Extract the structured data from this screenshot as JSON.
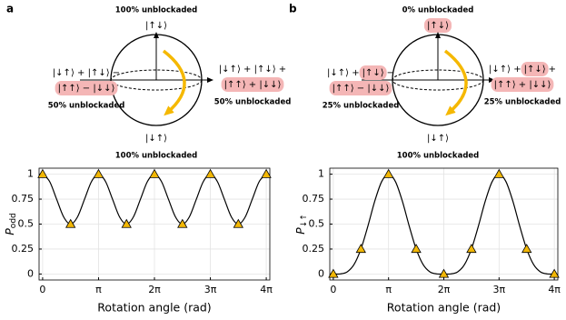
{
  "diagrams": [
    {
      "label": "a",
      "top_text": "100% unblockaded",
      "top_state": [
        {
          "text": "|↑↓⟩",
          "highlight": false
        }
      ],
      "left_lines": [
        [
          {
            "text": "|↓↑⟩ + |↑↓⟩ −",
            "highlight": false
          }
        ],
        [
          {
            "text": "|↑↑⟩ − |↓↓⟩",
            "highlight": true
          }
        ]
      ],
      "left_note": "50% unblockaded",
      "right_lines": [
        [
          {
            "text": "|↓↑⟩ + |↑↓⟩ +",
            "highlight": false
          }
        ],
        [
          {
            "text": "|↑↑⟩ + |↓↓⟩",
            "highlight": true
          }
        ]
      ],
      "right_note": "50% unblockaded",
      "bottom_state": "|↓↑⟩",
      "bottom_text": "100% unblockaded"
    },
    {
      "label": "b",
      "top_text": "0% unblockaded",
      "top_state": [
        {
          "text": "|↑↓⟩",
          "highlight": true
        }
      ],
      "left_lines": [
        [
          {
            "text": "|↓↑⟩ +",
            "highlight": false
          },
          {
            "text": "|↑↓⟩",
            "highlight": true
          },
          {
            "text": "−",
            "highlight": false
          }
        ],
        [
          {
            "text": "|↑↑⟩ − |↓↓⟩",
            "highlight": true
          }
        ]
      ],
      "left_note": "25% unblockaded",
      "right_lines": [
        [
          {
            "text": "|↓↑⟩ +",
            "highlight": false
          },
          {
            "text": "|↑↓⟩",
            "highlight": true
          },
          {
            "text": "+",
            "highlight": false
          }
        ],
        [
          {
            "text": "|↑↑⟩ + |↓↓⟩",
            "highlight": true
          }
        ]
      ],
      "right_note": "25% unblockaded",
      "bottom_state": "|↓↑⟩",
      "bottom_text": "100% unblockaded"
    }
  ],
  "chart_data": [
    {
      "type": "line",
      "xlabel": "Rotation angle (rad)",
      "ylabel": {
        "main": "P",
        "sub": "odd"
      },
      "xlim": [
        -0.2,
        12.7664
      ],
      "ylim": [
        -0.06,
        1.06
      ],
      "grid": true,
      "xticks": [
        0,
        {
          "value": 3.1416,
          "label": "π"
        },
        {
          "value": 6.2832,
          "label": "2π"
        },
        {
          "value": 9.4248,
          "label": "3π"
        },
        {
          "value": 12.5664,
          "label": "4π"
        }
      ],
      "yticks": [
        0,
        0.25,
        0.5,
        0.75,
        1
      ],
      "series": [
        {
          "style": "line",
          "color": "#000000",
          "x": [
            0,
            0.3927,
            0.7854,
            1.1781,
            1.5708,
            1.9635,
            2.3562,
            2.7489,
            3.1416,
            3.5343,
            3.927,
            4.3197,
            4.7124,
            5.1051,
            5.4978,
            5.8905,
            6.2832,
            6.6759,
            7.0686,
            7.4613,
            7.854,
            8.2467,
            8.6394,
            9.0321,
            9.4248,
            9.8175,
            10.2102,
            10.6029,
            10.9956,
            11.3883,
            11.781,
            12.1737,
            12.5664
          ],
          "values": [
            1,
            0.927,
            0.75,
            0.573,
            0.5,
            0.573,
            0.75,
            0.927,
            1,
            0.927,
            0.75,
            0.573,
            0.5,
            0.573,
            0.75,
            0.927,
            1,
            0.927,
            0.75,
            0.573,
            0.5,
            0.573,
            0.75,
            0.927,
            1,
            0.927,
            0.75,
            0.573,
            0.5,
            0.573,
            0.75,
            0.927,
            1
          ]
        },
        {
          "style": "triangle",
          "color": "#f2b705",
          "x": [
            0,
            1.5708,
            3.1416,
            4.7124,
            6.2832,
            7.854,
            9.4248,
            10.9956,
            12.5664
          ],
          "values": [
            1,
            0.5,
            1,
            0.5,
            1,
            0.5,
            1,
            0.5,
            1
          ]
        }
      ]
    },
    {
      "type": "line",
      "xlabel": "Rotation angle (rad)",
      "ylabel": {
        "main": "P",
        "sub": "↓↑"
      },
      "xlim": [
        -0.2,
        12.7664
      ],
      "ylim": [
        -0.06,
        1.06
      ],
      "grid": true,
      "xticks": [
        0,
        {
          "value": 3.1416,
          "label": "π"
        },
        {
          "value": 6.2832,
          "label": "2π"
        },
        {
          "value": 9.4248,
          "label": "3π"
        },
        {
          "value": 12.5664,
          "label": "4π"
        }
      ],
      "yticks": [
        0,
        0.25,
        0.5,
        0.75,
        1
      ],
      "series": [
        {
          "style": "line",
          "color": "#000000",
          "x": [
            0,
            0.3927,
            0.7854,
            1.1781,
            1.5708,
            1.9635,
            2.3562,
            2.7489,
            3.1416,
            3.5343,
            3.927,
            4.3197,
            4.7124,
            5.1051,
            5.4978,
            5.8905,
            6.2832,
            6.6759,
            7.0686,
            7.4613,
            7.854,
            8.2467,
            8.6394,
            9.0321,
            9.4248,
            9.8175,
            10.2102,
            10.6029,
            10.9956,
            11.3883,
            11.781,
            12.1737,
            12.5664
          ],
          "values": [
            0,
            0.001,
            0.021,
            0.095,
            0.25,
            0.478,
            0.729,
            0.925,
            1,
            0.925,
            0.729,
            0.478,
            0.25,
            0.095,
            0.021,
            0.001,
            0,
            0.001,
            0.021,
            0.095,
            0.25,
            0.478,
            0.729,
            0.925,
            1,
            0.925,
            0.729,
            0.478,
            0.25,
            0.095,
            0.021,
            0.001,
            0
          ]
        },
        {
          "style": "triangle",
          "color": "#f2b705",
          "x": [
            0,
            1.5708,
            3.1416,
            4.7124,
            6.2832,
            7.854,
            9.4248,
            10.9956,
            12.5664
          ],
          "values": [
            0,
            0.25,
            1,
            0.25,
            0,
            0.25,
            1,
            0.25,
            0
          ]
        }
      ]
    }
  ]
}
